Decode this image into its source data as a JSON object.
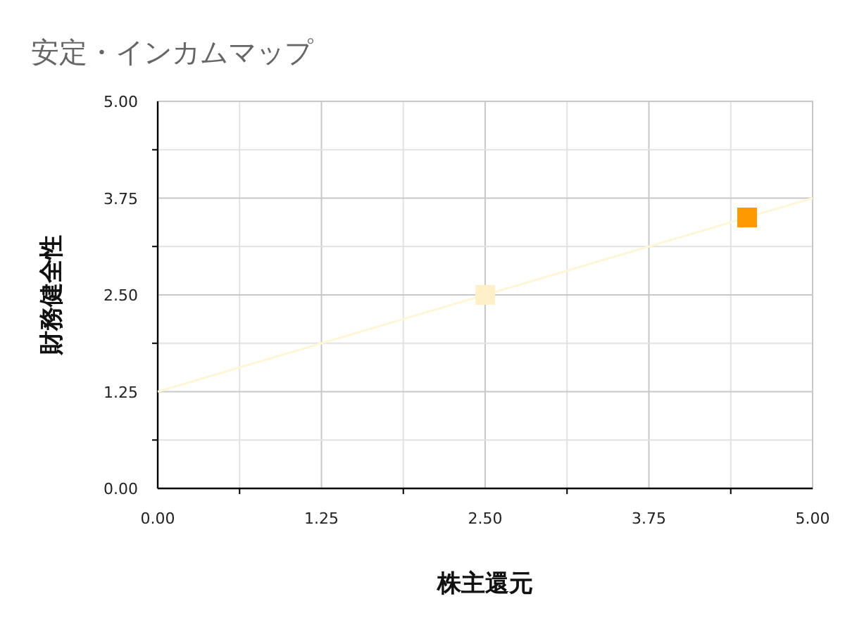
{
  "chart_data": {
    "type": "scatter",
    "title": "安定・インカムマップ",
    "xlabel": "株主還元",
    "ylabel": "財務健全性",
    "xlim": [
      0,
      5
    ],
    "ylim": [
      0,
      5
    ],
    "xticks": [
      {
        "value": 0,
        "label": "0.00"
      },
      {
        "value": 0.625,
        "label": null
      },
      {
        "value": 1.25,
        "label": "1.25"
      },
      {
        "value": 1.875,
        "label": null
      },
      {
        "value": 2.5,
        "label": "2.50"
      },
      {
        "value": 3.125,
        "label": null
      },
      {
        "value": 3.75,
        "label": "3.75"
      },
      {
        "value": 4.375,
        "label": null
      },
      {
        "value": 5,
        "label": "5.00"
      }
    ],
    "yticks": [
      {
        "value": 0,
        "label": "0.00"
      },
      {
        "value": 0.625,
        "label": null
      },
      {
        "value": 1.25,
        "label": "1.25"
      },
      {
        "value": 1.875,
        "label": null
      },
      {
        "value": 2.5,
        "label": "2.50"
      },
      {
        "value": 3.125,
        "label": null
      },
      {
        "value": 3.75,
        "label": "3.75"
      },
      {
        "value": 4.375,
        "label": null
      },
      {
        "value": 5,
        "label": "5.00"
      }
    ],
    "grid": true,
    "series": [
      {
        "marker": "square",
        "x": [
          2.5,
          4.5
        ],
        "values": [
          2.5,
          3.5
        ],
        "colors": [
          "#fff0c8",
          "#ff9900"
        ]
      },
      {
        "type": "line",
        "x": [
          0,
          5
        ],
        "values": [
          1.25,
          3.75
        ],
        "color": "#fff6d8"
      }
    ]
  }
}
